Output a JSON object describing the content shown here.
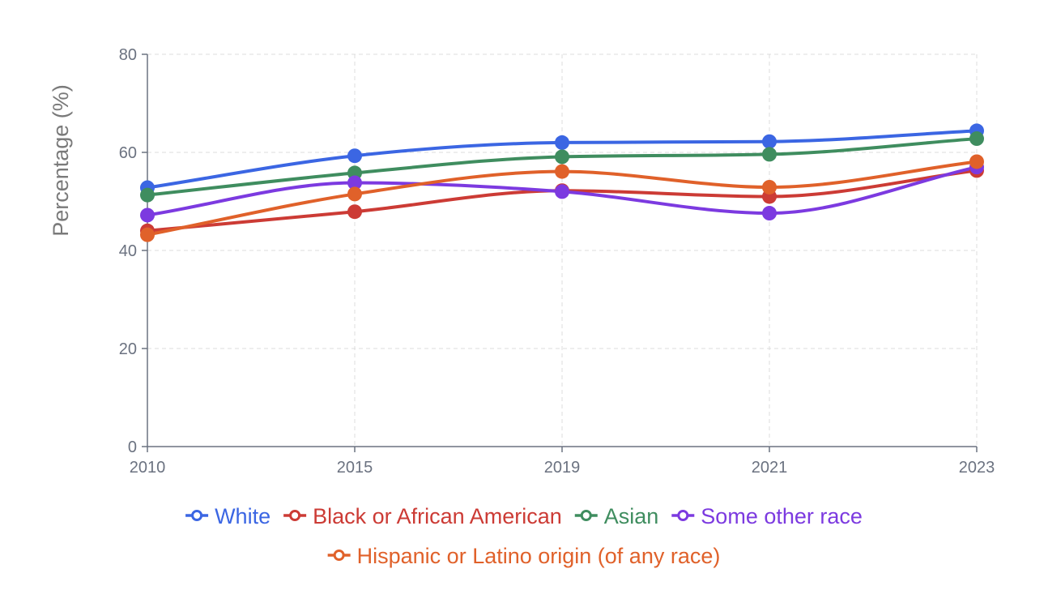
{
  "chart_data": {
    "type": "line",
    "title": "",
    "xlabel": "",
    "ylabel": "Percentage (%)",
    "categories": [
      "2010",
      "2015",
      "2019",
      "2021",
      "2023"
    ],
    "ylim": [
      0,
      80
    ],
    "yticks": [
      "0",
      "20",
      "40",
      "60",
      "80"
    ],
    "grid": true,
    "legend_position": "bottom",
    "series": [
      {
        "name": "White",
        "color": "#3b66e3",
        "values": [
          52.8,
          59.3,
          62.0,
          62.2,
          64.4
        ]
      },
      {
        "name": "Black or African American",
        "color": "#cc3b35",
        "values": [
          44.0,
          47.9,
          52.2,
          51.0,
          56.3
        ]
      },
      {
        "name": "Asian",
        "color": "#3f8d5f",
        "values": [
          51.3,
          55.8,
          59.1,
          59.6,
          62.8
        ]
      },
      {
        "name": "Some other race",
        "color": "#7c3ae0",
        "values": [
          47.2,
          53.8,
          52.0,
          47.6,
          57.0
        ]
      },
      {
        "name": "Hispanic or Latino origin (of any race)",
        "color": "#e0612a",
        "values": [
          43.2,
          51.5,
          56.1,
          52.9,
          58.1
        ]
      }
    ]
  }
}
